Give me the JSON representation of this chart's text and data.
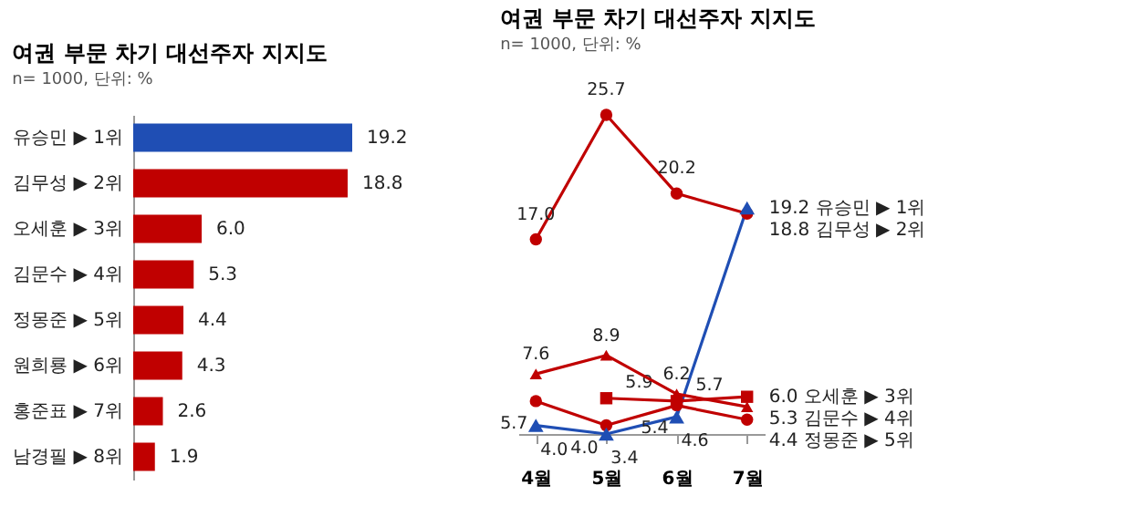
{
  "chart_data": [
    {
      "type": "bar",
      "title": "여권 부문 차기 대선주자 지지도",
      "subtitle": "n= 1000, 단위: %",
      "orientation": "horizontal",
      "categories": [
        "유승민 ▶ 1위",
        "김무성 ▶ 2위",
        "오세훈 ▶ 3위",
        "김문수 ▶ 4위",
        "정몽준 ▶ 5위",
        "원희룡 ▶ 6위",
        "홍준표 ▶ 7위",
        "남경필 ▶ 8위"
      ],
      "values": [
        19.2,
        18.8,
        6.0,
        5.3,
        4.4,
        4.3,
        2.6,
        1.9
      ],
      "value_labels": [
        "19.2",
        "18.8",
        "6.0",
        "5.3",
        "4.4",
        "4.3",
        "2.6",
        "1.9"
      ],
      "colors": [
        "#1f4eb4",
        "#c00000",
        "#c00000",
        "#c00000",
        "#c00000",
        "#c00000",
        "#c00000",
        "#c00000"
      ]
    },
    {
      "type": "line",
      "title": "여권 부문 차기 대선주자 지지도",
      "subtitle": "n= 1000, 단위: %",
      "categories": [
        "4월",
        "5월",
        "6월",
        "7월"
      ],
      "line_style": "solid",
      "series": [
        {
          "name": "19.2 유승민 ▶ 1위",
          "color": "#1f4eb4",
          "marker": "triangle",
          "values": [
            4.0,
            3.4,
            4.6,
            19.2
          ],
          "value_labels": [
            "4.0",
            "3.4",
            "4.6",
            null
          ]
        },
        {
          "name": "18.8 김무성 ▶ 2위",
          "color": "#c00000",
          "marker": "circle",
          "values": [
            17.0,
            25.7,
            20.2,
            18.8
          ],
          "value_labels": [
            "17.0",
            "25.7",
            "20.2",
            null
          ]
        },
        {
          "name": "6.0 오세훈 ▶ 3위",
          "color": "#c00000",
          "marker": "square",
          "values": [
            null,
            5.9,
            5.7,
            6.0
          ],
          "value_labels": [
            null,
            "5.9",
            "5.7",
            null
          ]
        },
        {
          "name": "5.3 김문수 ▶ 4위",
          "color": "#c00000",
          "marker": "triangle",
          "values": [
            7.6,
            8.9,
            6.2,
            5.3
          ],
          "value_labels": [
            "7.6",
            "8.9",
            "6.2",
            null
          ]
        },
        {
          "name": "4.4 정몽준 ▶ 5위",
          "color": "#c00000",
          "marker": "circle",
          "values": [
            5.7,
            4.0,
            5.4,
            4.4
          ],
          "value_labels": [
            "5.7",
            "4.0",
            "5.4",
            null
          ]
        }
      ]
    }
  ]
}
